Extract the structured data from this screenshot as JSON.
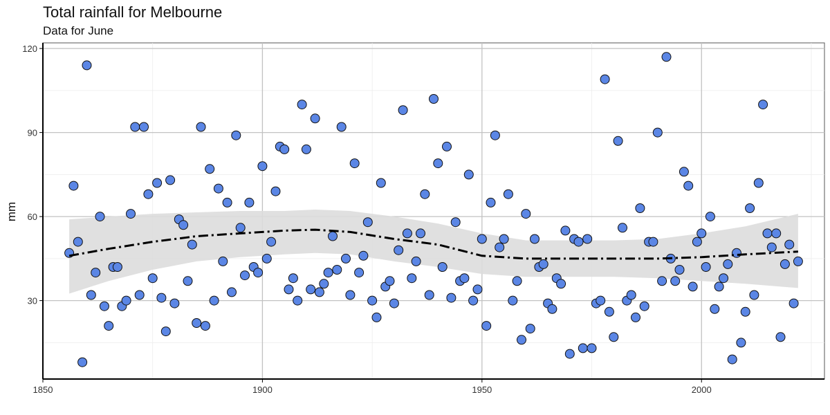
{
  "chart_data": {
    "type": "scatter",
    "title": "Total rainfall for Melbourne",
    "subtitle": "Data for June",
    "xlabel": "",
    "ylabel": "mm",
    "xlim": [
      1850,
      2028
    ],
    "ylim": [
      2,
      122
    ],
    "xticks": [
      1850,
      1900,
      1950,
      2000
    ],
    "yticks": [
      30,
      60,
      90,
      120
    ],
    "grid": true,
    "point_color": "#5b86e5",
    "smooth_color": "#000000",
    "band_color": "#dddddd",
    "points": [
      {
        "x": 1856,
        "y": 47
      },
      {
        "x": 1857,
        "y": 71
      },
      {
        "x": 1858,
        "y": 51
      },
      {
        "x": 1859,
        "y": 8
      },
      {
        "x": 1860,
        "y": 114
      },
      {
        "x": 1861,
        "y": 32
      },
      {
        "x": 1862,
        "y": 40
      },
      {
        "x": 1863,
        "y": 60
      },
      {
        "x": 1864,
        "y": 28
      },
      {
        "x": 1865,
        "y": 21
      },
      {
        "x": 1866,
        "y": 42
      },
      {
        "x": 1867,
        "y": 42
      },
      {
        "x": 1868,
        "y": 28
      },
      {
        "x": 1869,
        "y": 30
      },
      {
        "x": 1870,
        "y": 61
      },
      {
        "x": 1871,
        "y": 92
      },
      {
        "x": 1872,
        "y": 32
      },
      {
        "x": 1873,
        "y": 92
      },
      {
        "x": 1874,
        "y": 68
      },
      {
        "x": 1875,
        "y": 38
      },
      {
        "x": 1876,
        "y": 72
      },
      {
        "x": 1877,
        "y": 31
      },
      {
        "x": 1878,
        "y": 19
      },
      {
        "x": 1879,
        "y": 73
      },
      {
        "x": 1880,
        "y": 29
      },
      {
        "x": 1881,
        "y": 59
      },
      {
        "x": 1882,
        "y": 57
      },
      {
        "x": 1883,
        "y": 37
      },
      {
        "x": 1884,
        "y": 50
      },
      {
        "x": 1885,
        "y": 22
      },
      {
        "x": 1886,
        "y": 92
      },
      {
        "x": 1887,
        "y": 21
      },
      {
        "x": 1888,
        "y": 77
      },
      {
        "x": 1889,
        "y": 30
      },
      {
        "x": 1890,
        "y": 70
      },
      {
        "x": 1891,
        "y": 44
      },
      {
        "x": 1892,
        "y": 65
      },
      {
        "x": 1893,
        "y": 33
      },
      {
        "x": 1894,
        "y": 89
      },
      {
        "x": 1895,
        "y": 56
      },
      {
        "x": 1896,
        "y": 39
      },
      {
        "x": 1897,
        "y": 65
      },
      {
        "x": 1898,
        "y": 42
      },
      {
        "x": 1899,
        "y": 40
      },
      {
        "x": 1900,
        "y": 78
      },
      {
        "x": 1901,
        "y": 45
      },
      {
        "x": 1902,
        "y": 51
      },
      {
        "x": 1903,
        "y": 69
      },
      {
        "x": 1904,
        "y": 85
      },
      {
        "x": 1905,
        "y": 84
      },
      {
        "x": 1906,
        "y": 34
      },
      {
        "x": 1907,
        "y": 38
      },
      {
        "x": 1908,
        "y": 30
      },
      {
        "x": 1909,
        "y": 100
      },
      {
        "x": 1910,
        "y": 84
      },
      {
        "x": 1911,
        "y": 34
      },
      {
        "x": 1912,
        "y": 95
      },
      {
        "x": 1913,
        "y": 33
      },
      {
        "x": 1914,
        "y": 36
      },
      {
        "x": 1915,
        "y": 40
      },
      {
        "x": 1916,
        "y": 53
      },
      {
        "x": 1917,
        "y": 41
      },
      {
        "x": 1918,
        "y": 92
      },
      {
        "x": 1919,
        "y": 45
      },
      {
        "x": 1920,
        "y": 32
      },
      {
        "x": 1921,
        "y": 79
      },
      {
        "x": 1922,
        "y": 40
      },
      {
        "x": 1923,
        "y": 46
      },
      {
        "x": 1924,
        "y": 58
      },
      {
        "x": 1925,
        "y": 30
      },
      {
        "x": 1926,
        "y": 24
      },
      {
        "x": 1927,
        "y": 72
      },
      {
        "x": 1928,
        "y": 35
      },
      {
        "x": 1929,
        "y": 37
      },
      {
        "x": 1930,
        "y": 29
      },
      {
        "x": 1931,
        "y": 48
      },
      {
        "x": 1932,
        "y": 98
      },
      {
        "x": 1933,
        "y": 54
      },
      {
        "x": 1934,
        "y": 38
      },
      {
        "x": 1935,
        "y": 44
      },
      {
        "x": 1936,
        "y": 54
      },
      {
        "x": 1937,
        "y": 68
      },
      {
        "x": 1938,
        "y": 32
      },
      {
        "x": 1939,
        "y": 102
      },
      {
        "x": 1940,
        "y": 79
      },
      {
        "x": 1941,
        "y": 42
      },
      {
        "x": 1942,
        "y": 85
      },
      {
        "x": 1943,
        "y": 31
      },
      {
        "x": 1944,
        "y": 58
      },
      {
        "x": 1945,
        "y": 37
      },
      {
        "x": 1946,
        "y": 38
      },
      {
        "x": 1947,
        "y": 75
      },
      {
        "x": 1948,
        "y": 30
      },
      {
        "x": 1949,
        "y": 34
      },
      {
        "x": 1950,
        "y": 52
      },
      {
        "x": 1951,
        "y": 21
      },
      {
        "x": 1952,
        "y": 65
      },
      {
        "x": 1953,
        "y": 89
      },
      {
        "x": 1954,
        "y": 49
      },
      {
        "x": 1955,
        "y": 52
      },
      {
        "x": 1956,
        "y": 68
      },
      {
        "x": 1957,
        "y": 30
      },
      {
        "x": 1958,
        "y": 37
      },
      {
        "x": 1959,
        "y": 16
      },
      {
        "x": 1960,
        "y": 61
      },
      {
        "x": 1961,
        "y": 20
      },
      {
        "x": 1962,
        "y": 52
      },
      {
        "x": 1963,
        "y": 42
      },
      {
        "x": 1964,
        "y": 43
      },
      {
        "x": 1965,
        "y": 29
      },
      {
        "x": 1966,
        "y": 27
      },
      {
        "x": 1967,
        "y": 38
      },
      {
        "x": 1968,
        "y": 36
      },
      {
        "x": 1969,
        "y": 55
      },
      {
        "x": 1970,
        "y": 11
      },
      {
        "x": 1971,
        "y": 52
      },
      {
        "x": 1972,
        "y": 51
      },
      {
        "x": 1973,
        "y": 13
      },
      {
        "x": 1974,
        "y": 52
      },
      {
        "x": 1975,
        "y": 13
      },
      {
        "x": 1976,
        "y": 29
      },
      {
        "x": 1977,
        "y": 30
      },
      {
        "x": 1978,
        "y": 109
      },
      {
        "x": 1979,
        "y": 26
      },
      {
        "x": 1980,
        "y": 17
      },
      {
        "x": 1981,
        "y": 87
      },
      {
        "x": 1982,
        "y": 56
      },
      {
        "x": 1983,
        "y": 30
      },
      {
        "x": 1984,
        "y": 32
      },
      {
        "x": 1985,
        "y": 24
      },
      {
        "x": 1986,
        "y": 63
      },
      {
        "x": 1987,
        "y": 28
      },
      {
        "x": 1988,
        "y": 51
      },
      {
        "x": 1989,
        "y": 51
      },
      {
        "x": 1990,
        "y": 90
      },
      {
        "x": 1991,
        "y": 37
      },
      {
        "x": 1992,
        "y": 117
      },
      {
        "x": 1993,
        "y": 45
      },
      {
        "x": 1994,
        "y": 37
      },
      {
        "x": 1995,
        "y": 41
      },
      {
        "x": 1996,
        "y": 76
      },
      {
        "x": 1997,
        "y": 71
      },
      {
        "x": 1998,
        "y": 35
      },
      {
        "x": 1999,
        "y": 51
      },
      {
        "x": 2000,
        "y": 54
      },
      {
        "x": 2001,
        "y": 42
      },
      {
        "x": 2002,
        "y": 60
      },
      {
        "x": 2003,
        "y": 27
      },
      {
        "x": 2004,
        "y": 35
      },
      {
        "x": 2005,
        "y": 38
      },
      {
        "x": 2006,
        "y": 43
      },
      {
        "x": 2007,
        "y": 9
      },
      {
        "x": 2008,
        "y": 47
      },
      {
        "x": 2009,
        "y": 15
      },
      {
        "x": 2010,
        "y": 26
      },
      {
        "x": 2011,
        "y": 63
      },
      {
        "x": 2012,
        "y": 32
      },
      {
        "x": 2013,
        "y": 72
      },
      {
        "x": 2014,
        "y": 100
      },
      {
        "x": 2015,
        "y": 54
      },
      {
        "x": 2016,
        "y": 49
      },
      {
        "x": 2017,
        "y": 54
      },
      {
        "x": 2018,
        "y": 17
      },
      {
        "x": 2019,
        "y": 43
      },
      {
        "x": 2020,
        "y": 50
      },
      {
        "x": 2021,
        "y": 29
      },
      {
        "x": 2022,
        "y": 44
      }
    ],
    "smooth": {
      "x": [
        1856,
        1865,
        1875,
        1885,
        1895,
        1905,
        1912,
        1920,
        1930,
        1940,
        1950,
        1960,
        1970,
        1980,
        1990,
        2000,
        2010,
        2022
      ],
      "y": [
        46,
        48.5,
        51,
        53,
        54,
        55,
        55.3,
        54.5,
        52,
        50,
        46,
        45,
        45,
        45,
        45,
        45.5,
        46.5,
        47.5
      ],
      "lower": [
        32.5,
        37,
        41,
        44,
        45.5,
        46.5,
        47,
        46.5,
        44,
        42,
        39.5,
        38.5,
        38.5,
        38.5,
        38,
        37,
        36,
        34.5
      ],
      "upper": [
        59,
        60,
        61,
        61.5,
        62,
        62,
        62.5,
        62,
        60,
        57.5,
        54,
        51.5,
        51.5,
        51.5,
        52,
        54,
        56.5,
        61
      ]
    }
  }
}
